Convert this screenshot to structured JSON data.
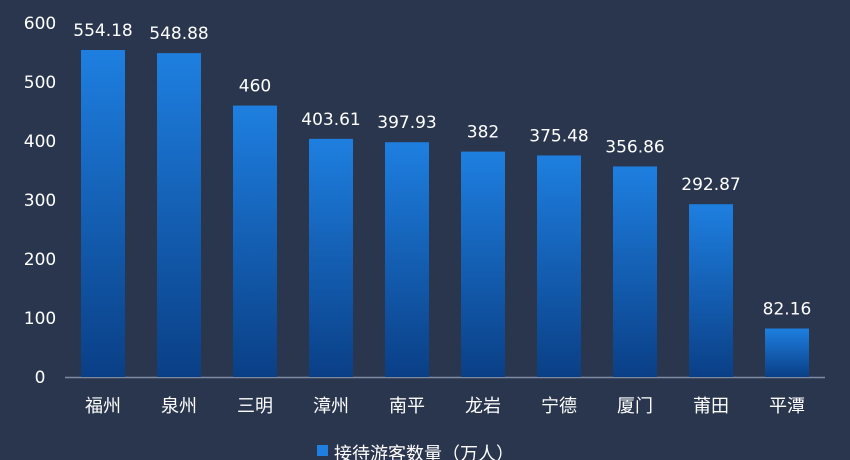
{
  "chart_data": {
    "type": "bar",
    "categories": [
      "福州",
      "泉州",
      "三明",
      "漳州",
      "南平",
      "龙岩",
      "宁德",
      "厦门",
      "莆田",
      "平潭"
    ],
    "series": [
      {
        "name": "接待游客数量（万人）",
        "values": [
          554.18,
          548.88,
          460,
          403.61,
          397.93,
          382,
          375.48,
          356.86,
          292.87,
          82.16
        ],
        "data_labels": [
          "554.18",
          "548.88",
          "460",
          "403.61",
          "397.93",
          "382",
          "375.48",
          "356.86",
          "292.87",
          "82.16"
        ]
      }
    ],
    "yticks": [
      "0",
      "100",
      "200",
      "300",
      "400",
      "500",
      "600"
    ],
    "ylim": [
      0,
      600
    ],
    "title": "",
    "xlabel": "",
    "ylabel": "",
    "grid": false,
    "legend_position": "bottom"
  },
  "colors": {
    "background": "#2a364e",
    "bar_top": "#1e7fe0",
    "bar_bottom": "#0a3f86",
    "axis": "#7e8aa0",
    "text": "#ffffff"
  }
}
